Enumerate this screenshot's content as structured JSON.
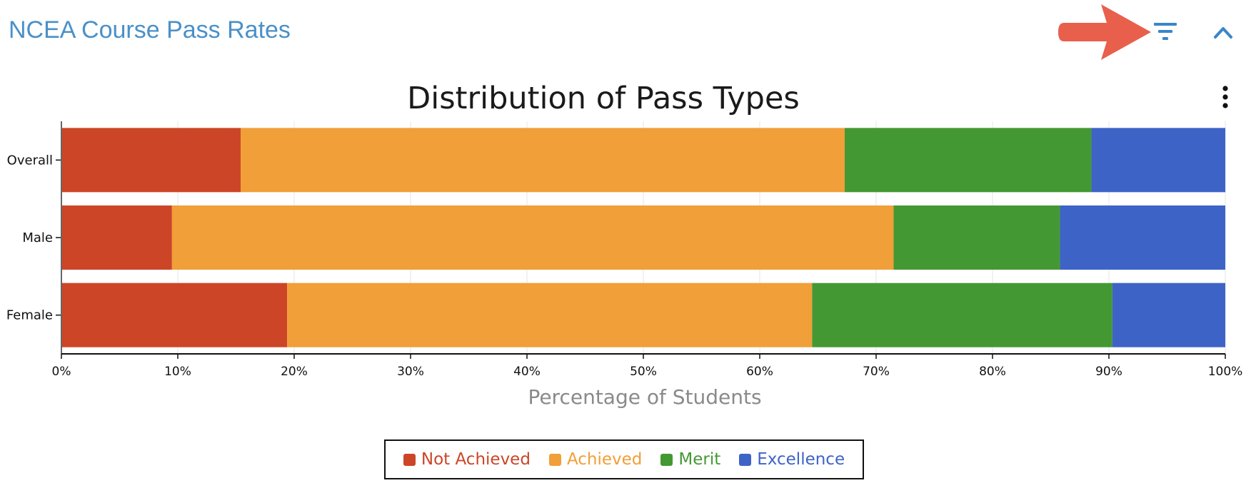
{
  "panel": {
    "title": "NCEA Course Pass Rates",
    "title_color": "#4a90c8",
    "icon_color": "#3a86c8",
    "filter_icon": "filter-icon",
    "collapse_icon": "chevron-up-icon",
    "menu_icon": "vertical-ellipsis-icon",
    "annotation_icon": "red-arrow-icon",
    "annotation_color": "#e8604c"
  },
  "chart_data": {
    "type": "bar",
    "orientation": "horizontal",
    "stacked": true,
    "normalized": true,
    "title": "Distribution of Pass Types",
    "xlabel": "Percentage of Students",
    "ylabel": "",
    "xlim": [
      0,
      100
    ],
    "x_ticks": [
      "0%",
      "10%",
      "20%",
      "30%",
      "40%",
      "50%",
      "60%",
      "70%",
      "80%",
      "90%",
      "100%"
    ],
    "categories": [
      "Overall",
      "Male",
      "Female"
    ],
    "series": [
      {
        "name": "Not Achieved",
        "color": "#cc4527",
        "values": [
          15.4,
          9.5,
          19.4
        ]
      },
      {
        "name": "Achieved",
        "color": "#f19f38",
        "values": [
          51.9,
          62.0,
          45.1
        ]
      },
      {
        "name": "Merit",
        "color": "#449833",
        "values": [
          21.2,
          14.3,
          25.8
        ]
      },
      {
        "name": "Excellence",
        "color": "#3e63c7",
        "values": [
          11.5,
          14.2,
          9.7
        ]
      }
    ],
    "grid": true,
    "legend_position": "bottom-center"
  }
}
